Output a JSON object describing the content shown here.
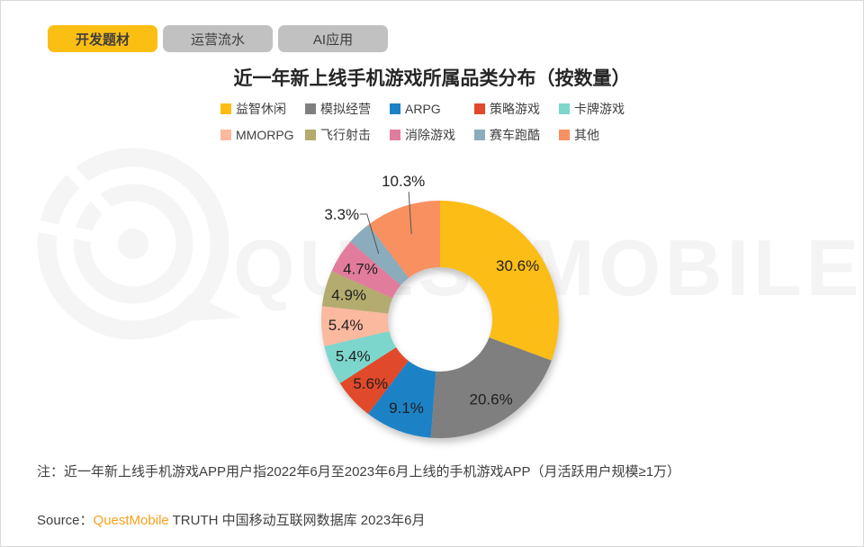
{
  "tabs": [
    {
      "label": "开发题材",
      "active": true
    },
    {
      "label": "运营流水",
      "active": false
    },
    {
      "label": "AI应用",
      "active": false
    }
  ],
  "title": "近一年新上线手机游戏所属品类分布（按数量）",
  "watermark": {
    "text": "QUESTMOBILE",
    "logo": "questmobile-logo"
  },
  "chart_data": {
    "type": "pie",
    "subtype": "donut",
    "title": "近一年新上线手机游戏所属品类分布（按数量）",
    "unit": "%",
    "legend_position": "top",
    "legend_rows": 2,
    "start_angle": "12-oclock-clockwise",
    "slices": [
      {
        "name": "益智休闲",
        "value": 30.6,
        "label": "30.6%",
        "color": "#FCBD13",
        "label_pos": "inside"
      },
      {
        "name": "模拟经营",
        "value": 20.6,
        "label": "20.6%",
        "color": "#7F7F7F",
        "label_pos": "inside"
      },
      {
        "name": "ARPG",
        "value": 9.1,
        "label": "9.1%",
        "color": "#1C82C5",
        "label_pos": "inside"
      },
      {
        "name": "策略游戏",
        "value": 5.6,
        "label": "5.6%",
        "color": "#E0492B",
        "label_pos": "inside"
      },
      {
        "name": "卡牌游戏",
        "value": 5.4,
        "label": "5.4%",
        "color": "#7DD6CC",
        "label_pos": "inside"
      },
      {
        "name": "MMORPG",
        "value": 5.4,
        "label": "5.4%",
        "color": "#FBB9A0",
        "label_pos": "inside"
      },
      {
        "name": "飞行射击",
        "value": 4.9,
        "label": "4.9%",
        "color": "#B4AB6E",
        "label_pos": "inside"
      },
      {
        "name": "消除游戏",
        "value": 4.7,
        "label": "4.7%",
        "color": "#E27C9D",
        "label_pos": "inside"
      },
      {
        "name": "赛车跑酷",
        "value": 3.3,
        "label": "3.3%",
        "color": "#8AACBC",
        "label_pos": "callout-left"
      },
      {
        "name": "其他",
        "value": 10.3,
        "label": "10.3%",
        "color": "#F99060",
        "label_pos": "callout-top"
      }
    ]
  },
  "note": "注：近一年新上线手机游戏APP用户指2022年6月至2023年6月上线的手机游戏APP（月活跃用户规模≥1万）",
  "source": {
    "prefix": "Source：",
    "brand": "QuestMobile",
    "suffix": " TRUTH 中国移动互联网数据库 2023年6月"
  },
  "colors": {
    "accent_yellow": "#FBBE13",
    "tab_inactive": "#C1C1C1",
    "brand_orange": "#F7A11C",
    "text_dark": "#404040",
    "watermark_gray": "#F4F4F4"
  }
}
